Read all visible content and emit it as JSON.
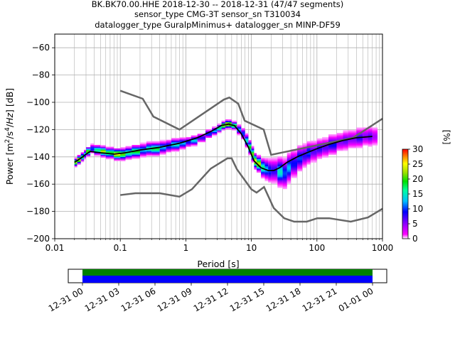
{
  "title_lines": [
    "BK.BK70.00.HHE   2018-12-30 -- 2018-12-31  (47/47 segments)",
    "sensor_type CMG-3T sensor_sn T310034",
    "datalogger_type GuralpMinimus+ datalogger_sn MINP-DF59"
  ],
  "colors": {
    "noise_model": "#666666",
    "mean_curve": "#000000",
    "grid": "#b0b0b0",
    "timeline_green": "#008000",
    "timeline_blue": "#0000ff"
  },
  "chart_data": [
    {
      "type": "heatmap",
      "subtype": "probabilistic-power-spectral-density",
      "xlabel": "Period [s]",
      "ylabel": "Power [m^2/s^4/Hz] [dB]",
      "x_scale": "log",
      "xlim": [
        0.01,
        1000
      ],
      "ylim": [
        -200,
        -50
      ],
      "x_ticks": [
        0.01,
        0.1,
        1,
        10,
        100,
        1000
      ],
      "x_tick_labels": [
        "0.01",
        "0.1",
        "1",
        "10",
        "100",
        "1000"
      ],
      "y_ticks": [
        -200,
        -180,
        -160,
        -140,
        -120,
        -100,
        -80,
        -60
      ],
      "y_tick_labels": [
        "−200",
        "−180",
        "−160",
        "−140",
        "−120",
        "−100",
        "−80",
        "−60"
      ],
      "grid": true,
      "colorbar": {
        "label": "[%]",
        "range": [
          0,
          30
        ],
        "ticks": [
          0,
          5,
          10,
          15,
          20,
          25,
          30
        ],
        "colormap": [
          "#ffffff",
          "#ff00ff",
          "#8000ff",
          "#0000ff",
          "#00c0ff",
          "#00ffa0",
          "#00e000",
          "#a0e000",
          "#ffff00",
          "#ff8000",
          "#ff0000"
        ]
      },
      "noise_models": [
        {
          "name": "new-high-noise-model",
          "periods": [
            0.1,
            0.22,
            0.32,
            0.8,
            3.8,
            4.6,
            6.3,
            7.9,
            15.4,
            20,
            354.8,
            1000
          ],
          "values": [
            -91.5,
            -97.4,
            -110.5,
            -120,
            -98,
            -96.5,
            -101,
            -113.5,
            -120,
            -138.5,
            -126,
            -112
          ]
        },
        {
          "name": "new-low-noise-model",
          "periods": [
            0.1,
            0.17,
            0.4,
            0.8,
            1.24,
            2.4,
            4.3,
            5,
            6,
            10,
            12,
            15.6,
            21.9,
            31.6,
            45,
            70,
            101,
            154,
            328,
            600,
            1000
          ],
          "values": [
            -168,
            -166.7,
            -166.7,
            -169.2,
            -163.7,
            -148.6,
            -141.1,
            -141.1,
            -149,
            -163.8,
            -166.2,
            -162.1,
            -177.5,
            -185,
            -187.5,
            -187.5,
            -185,
            -185,
            -187.5,
            -184.4,
            -178
          ]
        }
      ],
      "mean_curve": {
        "periods": [
          0.02,
          0.025,
          0.03,
          0.035,
          0.05,
          0.08,
          0.12,
          0.2,
          0.4,
          0.8,
          1.5,
          2.5,
          3.5,
          4.5,
          5.5,
          7,
          9,
          11,
          14,
          18,
          22,
          27,
          35,
          50,
          70,
          100,
          150,
          250,
          400,
          700
        ],
        "values": [
          -144,
          -141,
          -138,
          -136,
          -137,
          -138,
          -137,
          -135,
          -133,
          -130,
          -126,
          -121,
          -117,
          -116,
          -117,
          -123,
          -133,
          -143,
          -148,
          -150,
          -150,
          -148,
          -144,
          -140,
          -137,
          -134,
          -131,
          -128,
          -126,
          -125
        ]
      },
      "distribution": {
        "points": [
          [
            0.02,
            -144,
            22
          ],
          [
            0.022,
            -142,
            25
          ],
          [
            0.025,
            -140,
            18
          ],
          [
            0.028,
            -138,
            14
          ],
          [
            0.03,
            -136,
            20
          ],
          [
            0.035,
            -134,
            10
          ],
          [
            0.04,
            -135,
            16
          ],
          [
            0.05,
            -136,
            22
          ],
          [
            0.06,
            -137,
            18
          ],
          [
            0.08,
            -138,
            24
          ],
          [
            0.1,
            -138,
            20
          ],
          [
            0.12,
            -137,
            16
          ],
          [
            0.15,
            -136,
            18
          ],
          [
            0.2,
            -135,
            12
          ],
          [
            0.25,
            -134,
            15
          ],
          [
            0.3,
            -134,
            17
          ],
          [
            0.4,
            -133,
            12
          ],
          [
            0.5,
            -132,
            10
          ],
          [
            0.6,
            -131,
            14
          ],
          [
            0.8,
            -130,
            12
          ],
          [
            1,
            -129,
            9
          ],
          [
            1.2,
            -128,
            13
          ],
          [
            1.5,
            -126,
            8
          ],
          [
            2,
            -123,
            10
          ],
          [
            2.5,
            -121,
            12
          ],
          [
            3,
            -119,
            16
          ],
          [
            3.5,
            -117,
            22
          ],
          [
            4,
            -116,
            26
          ],
          [
            4.5,
            -116,
            24
          ],
          [
            5,
            -117,
            18
          ],
          [
            6,
            -120,
            12
          ],
          [
            7,
            -123,
            10
          ],
          [
            8,
            -128,
            14
          ],
          [
            9,
            -133,
            18
          ],
          [
            10,
            -138,
            20
          ],
          [
            11,
            -143,
            24
          ],
          [
            12,
            -145,
            22
          ],
          [
            14,
            -148,
            16
          ],
          [
            16,
            -149,
            12
          ],
          [
            18,
            -150,
            10
          ],
          [
            20,
            -150,
            8
          ],
          [
            25,
            -151,
            14
          ],
          [
            30,
            -152,
            10
          ],
          [
            35,
            -148,
            12
          ],
          [
            40,
            -145,
            9
          ],
          [
            50,
            -141,
            10
          ],
          [
            60,
            -139,
            8
          ],
          [
            70,
            -137,
            10
          ],
          [
            80,
            -136,
            7
          ],
          [
            100,
            -134,
            8
          ],
          [
            120,
            -133,
            7
          ],
          [
            150,
            -131,
            9
          ],
          [
            200,
            -129,
            6
          ],
          [
            250,
            -128,
            7
          ],
          [
            300,
            -127,
            6
          ],
          [
            400,
            -126,
            8
          ],
          [
            500,
            -125,
            6
          ],
          [
            600,
            -125,
            7
          ],
          [
            700,
            -125,
            5
          ]
        ],
        "spread": [
          [
            0.02,
            3
          ],
          [
            0.05,
            4
          ],
          [
            0.2,
            5
          ],
          [
            0.5,
            5
          ],
          [
            1,
            4
          ],
          [
            3,
            3
          ],
          [
            5,
            3
          ],
          [
            8,
            5
          ],
          [
            12,
            6
          ],
          [
            20,
            10
          ],
          [
            30,
            12
          ],
          [
            50,
            10
          ],
          [
            100,
            8
          ],
          [
            300,
            8
          ],
          [
            700,
            8
          ]
        ]
      }
    },
    {
      "type": "timeline",
      "x_tick_labels": [
        "12-31 00",
        "12-31 03",
        "12-31 06",
        "12-31 09",
        "12-31 12",
        "12-31 15",
        "12-31 18",
        "12-31 21",
        "01-01 00"
      ]
    }
  ]
}
